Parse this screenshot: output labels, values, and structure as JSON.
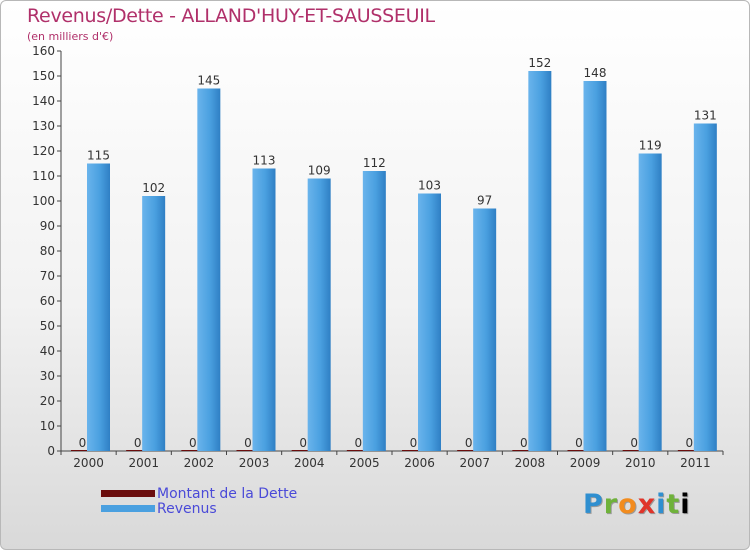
{
  "chart_data": {
    "type": "bar",
    "title": "Revenus/Dette - ALLAND'HUY-ET-SAUSSEUIL",
    "subtitle": "(en milliers d'€)",
    "categories": [
      "2000",
      "2001",
      "2002",
      "2003",
      "2004",
      "2005",
      "2006",
      "2007",
      "2008",
      "2009",
      "2010",
      "2011"
    ],
    "series": [
      {
        "name": "Montant de la Dette",
        "color": "#6b0d0d",
        "values": [
          0,
          0,
          0,
          0,
          0,
          0,
          0,
          0,
          0,
          0,
          0,
          0
        ]
      },
      {
        "name": "Revenus",
        "color": "#4aa0e0",
        "values": [
          115,
          102,
          145,
          113,
          109,
          112,
          103,
          97,
          152,
          148,
          119,
          131
        ]
      }
    ],
    "ylim": [
      0,
      160
    ],
    "yticks": [
      0,
      10,
      20,
      30,
      40,
      50,
      60,
      70,
      80,
      90,
      100,
      110,
      120,
      130,
      140,
      150,
      160
    ],
    "grid": false,
    "legend": "bottom-left"
  },
  "logo": {
    "letters": [
      "P",
      "r",
      "o",
      "x",
      "i",
      "t",
      "i"
    ]
  }
}
